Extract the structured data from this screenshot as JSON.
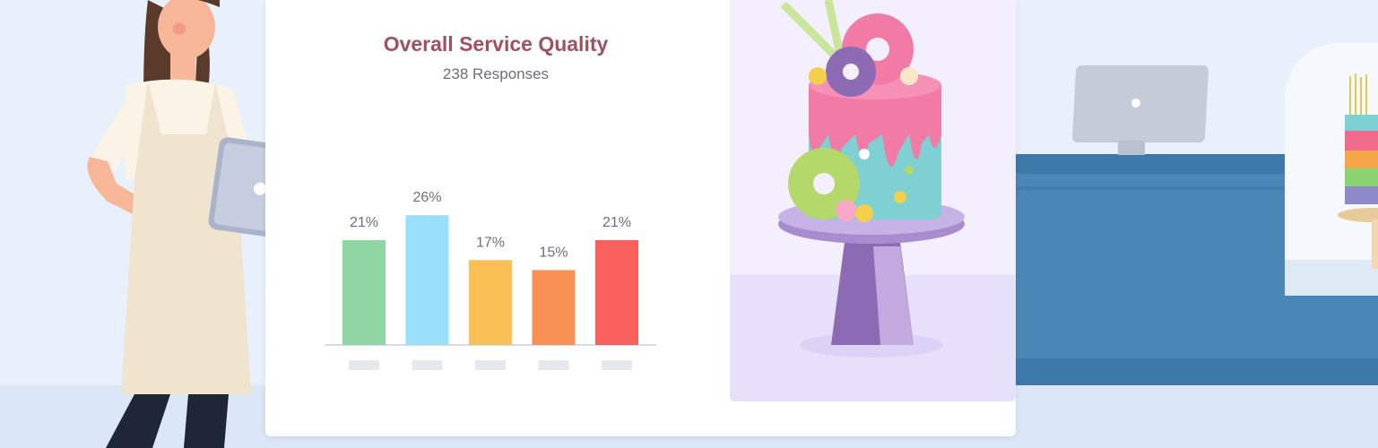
{
  "chart_data": {
    "type": "bar",
    "title": "Overall Service Quality",
    "subtitle": "238 Responses",
    "categories": [
      "",
      "",
      "",
      "",
      ""
    ],
    "values": [
      21,
      26,
      17,
      15,
      21
    ],
    "value_labels": [
      "21%",
      "26%",
      "17%",
      "15%",
      "21%"
    ],
    "colors": [
      "#8fd6a3",
      "#9ae0fa",
      "#f9c155",
      "#f99154",
      "#f85f5d"
    ],
    "ylim": [
      0,
      30
    ],
    "grid": false,
    "legend": "none"
  }
}
